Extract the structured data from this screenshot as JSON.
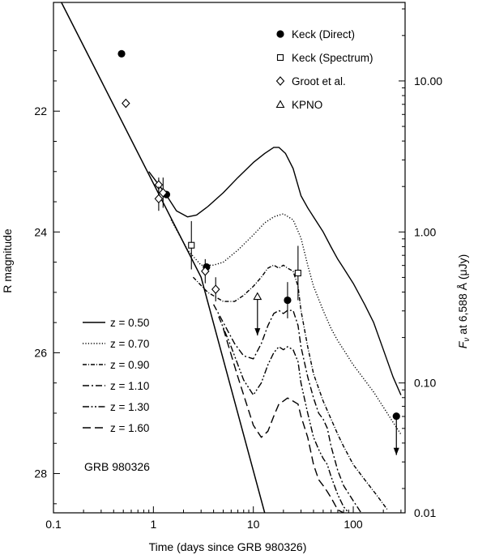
{
  "chart_data": {
    "type": "line",
    "annotation": "GRB 980326",
    "xlabel": "Time (days since GRB 980326)",
    "ylabel": "R magnitude",
    "y2label_main": "F",
    "y2label_sub": "ν",
    "y2label_rest": " at 6,588 Å (μJy)",
    "x_scale": "log",
    "xlim": [
      0.1,
      330
    ],
    "ylim": [
      28.65,
      20.2
    ],
    "x_ticks": [
      0.1,
      1,
      10,
      100
    ],
    "x_tick_labels": [
      "0.1",
      "1",
      "10",
      "100"
    ],
    "y_ticks": [
      22,
      24,
      26,
      28
    ],
    "y_tick_labels": [
      "22",
      "24",
      "26",
      "28"
    ],
    "y2_ticks": [
      10,
      1,
      0.1,
      0.01
    ],
    "y2_tick_labels": [
      "10.00",
      "1.00",
      "0.10",
      "0.01"
    ],
    "grid": false,
    "legend_position": "top-right",
    "afterglow_curve": {
      "x": [
        0.12,
        3,
        13
      ],
      "y": [
        20.2,
        24.75,
        28.65
      ]
    },
    "series": [
      {
        "name": "z = 0.50",
        "style": "solid",
        "x": [
          0.9,
          1.3,
          1.7,
          2.2,
          2.7,
          3.5,
          5,
          7,
          10,
          13,
          16,
          18,
          21,
          25,
          30,
          35,
          40,
          50,
          60,
          70,
          80,
          100,
          130,
          160,
          200,
          250,
          300
        ],
        "y": [
          23.0,
          23.35,
          23.65,
          23.75,
          23.72,
          23.58,
          23.35,
          23.1,
          22.85,
          22.7,
          22.6,
          22.6,
          22.7,
          22.95,
          23.4,
          23.6,
          23.75,
          24.0,
          24.25,
          24.45,
          24.6,
          24.85,
          25.2,
          25.5,
          25.95,
          26.4,
          26.7
        ]
      },
      {
        "name": "z = 0.70",
        "style": "dotted",
        "x": [
          1.5,
          2.2,
          3,
          4,
          5,
          7,
          10,
          13,
          16,
          20,
          25,
          30,
          35,
          40,
          50,
          60,
          70,
          80,
          100,
          130,
          160,
          200,
          250,
          300
        ],
        "y": [
          23.8,
          24.3,
          24.55,
          24.55,
          24.5,
          24.3,
          24.05,
          23.85,
          23.75,
          23.7,
          23.8,
          24.1,
          24.55,
          24.9,
          25.3,
          25.6,
          25.8,
          25.95,
          26.2,
          26.45,
          26.65,
          26.9,
          27.15,
          27.35
        ]
      },
      {
        "name": "z = 0.90",
        "style": "dashdot-fine",
        "x": [
          2.5,
          3.5,
          5,
          6.5,
          8,
          10,
          12,
          14,
          16,
          18,
          20,
          22,
          25,
          28,
          30,
          35,
          40,
          50,
          60,
          70,
          80,
          100,
          130,
          170,
          220
        ],
        "y": [
          24.75,
          25.0,
          25.15,
          25.15,
          25.05,
          24.9,
          24.75,
          24.6,
          24.55,
          24.6,
          24.55,
          24.6,
          24.65,
          24.9,
          25.3,
          25.9,
          26.35,
          26.8,
          27.1,
          27.35,
          27.55,
          27.85,
          28.1,
          28.35,
          28.6
        ]
      },
      {
        "name": "z = 1.10",
        "style": "dashdot",
        "x": [
          4,
          5,
          6.5,
          8,
          10,
          12,
          14,
          16,
          18,
          20,
          22,
          25,
          28,
          30,
          35,
          40,
          45,
          50,
          55,
          60,
          70,
          80,
          100,
          120
        ],
        "y": [
          25.2,
          25.5,
          25.85,
          26.05,
          26.1,
          25.85,
          25.55,
          25.35,
          25.3,
          25.35,
          25.3,
          25.3,
          25.55,
          25.9,
          26.4,
          26.75,
          27.0,
          27.1,
          27.25,
          27.55,
          27.95,
          28.2,
          28.45,
          28.65
        ]
      },
      {
        "name": "z = 1.30",
        "style": "dashdotdot",
        "x": [
          4.5,
          6,
          8,
          10,
          12,
          14,
          16,
          18,
          20,
          22,
          25,
          28,
          30,
          35,
          40,
          45,
          50,
          55,
          60,
          70,
          80,
          90
        ],
        "y": [
          25.4,
          25.9,
          26.45,
          26.7,
          26.5,
          26.2,
          26.0,
          25.9,
          25.95,
          25.9,
          25.95,
          26.15,
          26.5,
          27.0,
          27.4,
          27.6,
          27.75,
          27.85,
          28.05,
          28.35,
          28.55,
          28.65
        ]
      },
      {
        "name": "z = 1.60",
        "style": "dashed",
        "x": [
          5,
          7,
          10,
          12,
          14,
          16,
          18,
          20,
          22,
          25,
          28,
          30,
          35,
          40,
          45,
          50,
          55,
          60,
          70,
          80
        ],
        "y": [
          25.6,
          26.4,
          27.2,
          27.4,
          27.3,
          27.05,
          26.85,
          26.8,
          26.75,
          26.8,
          26.85,
          27.05,
          27.4,
          27.85,
          28.1,
          28.2,
          28.3,
          28.4,
          28.6,
          28.65
        ]
      }
    ],
    "data_groups": [
      {
        "name": "Keck (Direct)",
        "marker": "filled-circle",
        "points": [
          {
            "x": 0.48,
            "y": 21.05,
            "err": 0
          },
          {
            "x": 1.35,
            "y": 23.38,
            "err": 0
          },
          {
            "x": 3.4,
            "y": 24.58,
            "err": 0
          },
          {
            "x": 22,
            "y": 25.13,
            "err": 0.3,
            "upper_limit": false
          },
          {
            "x": 270,
            "y": 27.05,
            "err": 0,
            "upper_limit": true
          }
        ]
      },
      {
        "name": "Keck (Spectrum)",
        "marker": "open-square",
        "points": [
          {
            "x": 2.4,
            "y": 24.22,
            "err": 0.4
          },
          {
            "x": 28,
            "y": 24.68,
            "err": 0.45
          }
        ]
      },
      {
        "name": "Groot et al.",
        "marker": "open-diamond",
        "points": [
          {
            "x": 0.53,
            "y": 21.87,
            "err": 0
          },
          {
            "x": 1.13,
            "y": 23.22,
            "err": 0.12
          },
          {
            "x": 1.13,
            "y": 23.45,
            "err": 0.2
          },
          {
            "x": 1.25,
            "y": 23.35,
            "err": 0.25
          },
          {
            "x": 3.3,
            "y": 24.65,
            "err": 0.2
          },
          {
            "x": 4.2,
            "y": 24.95,
            "err": 0.2
          }
        ]
      },
      {
        "name": "KPNO",
        "marker": "open-triangle",
        "points": [
          {
            "x": 11,
            "y": 25.07,
            "err": 0,
            "upper_limit": true
          }
        ]
      }
    ]
  }
}
